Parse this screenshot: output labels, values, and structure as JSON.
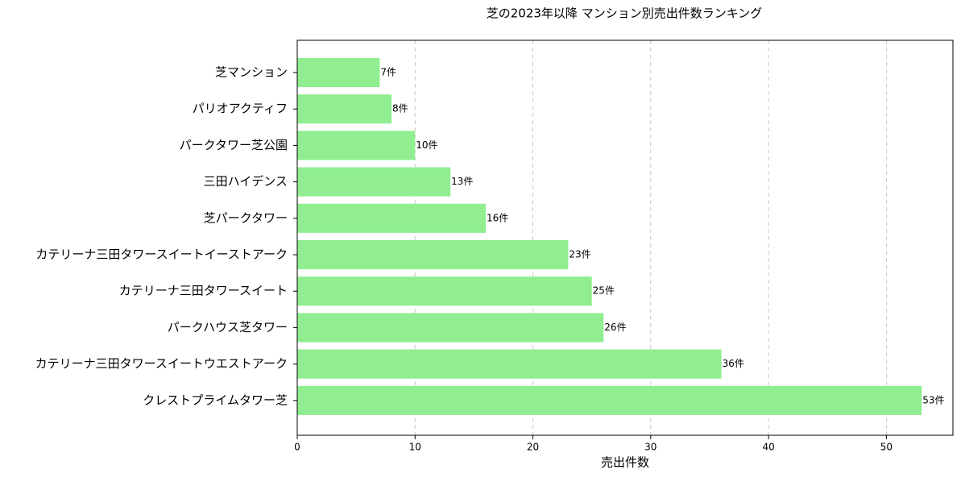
{
  "chart_data": {
    "type": "barh",
    "title": "芝の2023年以降 マンション別売出件数ランキング",
    "xlabel": "売出件数",
    "categories": [
      "芝マンション",
      "パリオアクティフ",
      "パークタワー芝公園",
      "三田ハイデンス",
      "芝パークタワー",
      "カテリーナ三田タワースイートイーストアーク",
      "カテリーナ三田タワースイート",
      "パークハウス芝タワー",
      "カテリーナ三田タワースイートウエストアーク",
      "クレストプライムタワー芝"
    ],
    "values": [
      7,
      8,
      10,
      13,
      16,
      23,
      25,
      26,
      36,
      53
    ],
    "value_labels": [
      "7件",
      "8件",
      "10件",
      "13件",
      "16件",
      "23件",
      "25件",
      "26件",
      "36件",
      "53件"
    ],
    "color": "#90ee90",
    "xlim": [
      0,
      55.65
    ],
    "xticks": [
      0,
      10,
      20,
      30,
      40,
      50
    ],
    "grid": true
  }
}
